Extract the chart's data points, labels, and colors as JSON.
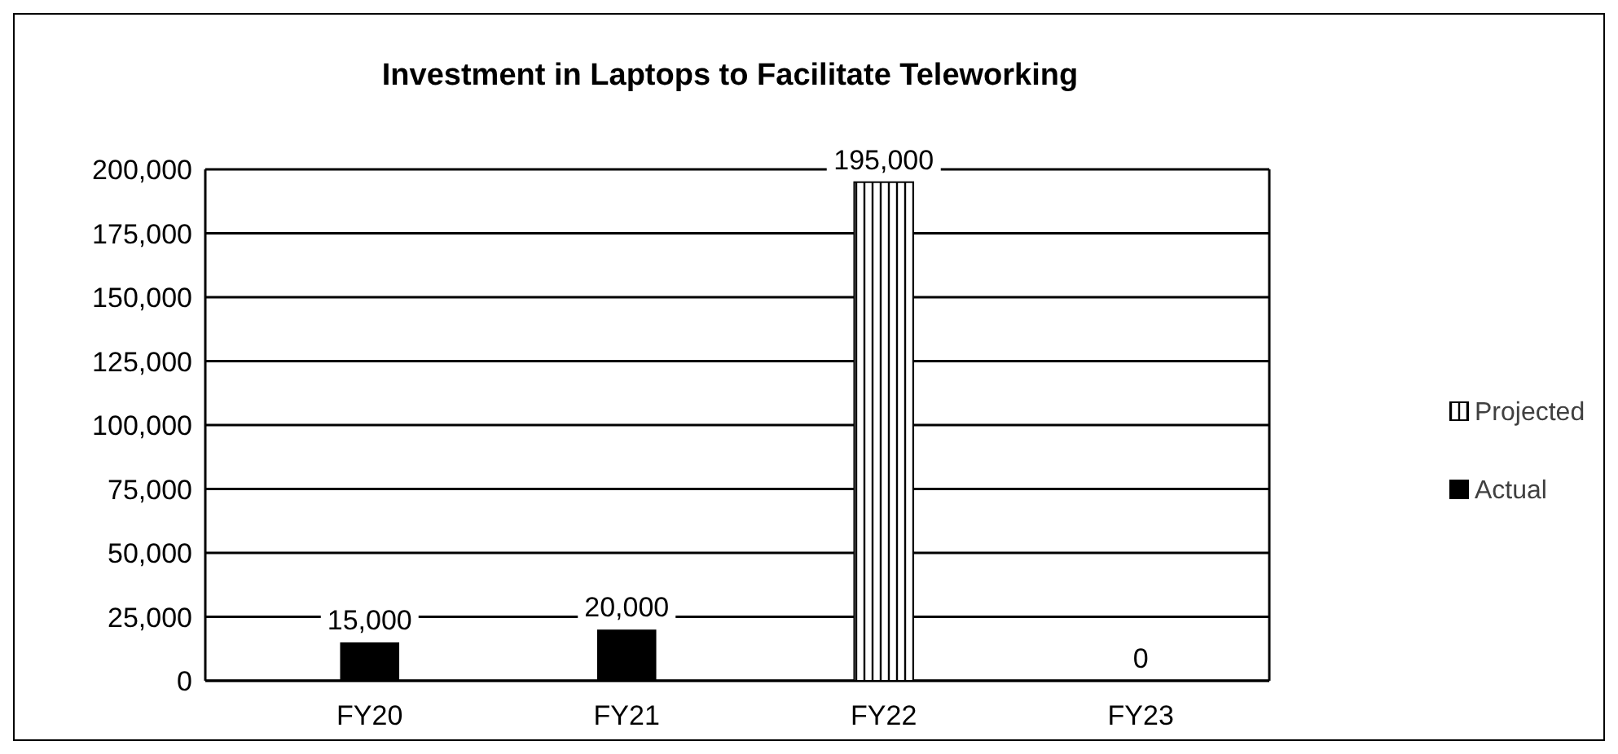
{
  "chart_data": {
    "type": "bar",
    "title": "Investment in Laptops to Facilitate Teleworking",
    "categories": [
      "FY20",
      "FY21",
      "FY22",
      "FY23"
    ],
    "series": [
      {
        "name": "Projected",
        "color": "#000000",
        "values": [
          null,
          null,
          195000,
          0
        ],
        "value_labels": [
          null,
          null,
          "195,000",
          "0"
        ]
      },
      {
        "name": "Actual",
        "color": "#000000",
        "values": [
          15000,
          20000,
          null,
          null
        ],
        "value_labels": [
          "15,000",
          "20,000",
          null,
          null
        ]
      }
    ],
    "ylim": [
      0,
      200000
    ],
    "yticks": [
      {
        "value": 0,
        "label": "0"
      },
      {
        "value": 25000,
        "label": "25,000"
      },
      {
        "value": 50000,
        "label": "50,000"
      },
      {
        "value": 75000,
        "label": "75,000"
      },
      {
        "value": 100000,
        "label": "100,000"
      },
      {
        "value": 125000,
        "label": "125,000"
      },
      {
        "value": 150000,
        "label": "150,000"
      },
      {
        "value": 175000,
        "label": "175,000"
      },
      {
        "value": 200000,
        "label": "200,000"
      }
    ],
    "grid": "y",
    "legend": "right"
  }
}
